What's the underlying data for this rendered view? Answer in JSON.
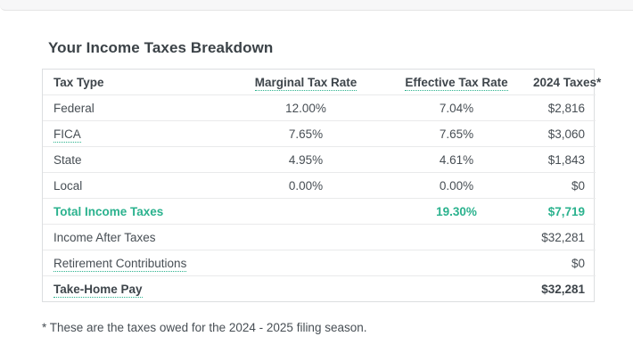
{
  "page": {
    "title": "Your Income Taxes Breakdown",
    "footnote": "* These are the taxes owed for the 2024 - 2025 filing season."
  },
  "colors": {
    "accent_teal": "#2bb28e",
    "text_dark": "#3e454b",
    "text_body": "#474e54",
    "table_border": "#dcdee0",
    "row_divider": "#e9eaeb",
    "top_strip_bg": "#f7f7f8"
  },
  "table": {
    "headers": {
      "tax_type": "Tax Type",
      "marginal": "Marginal Tax Rate",
      "effective": "Effective Tax Rate",
      "taxes_2024": "2024 Taxes*"
    },
    "rows": [
      {
        "type": "Federal",
        "marginal": "12.00%",
        "effective": "7.04%",
        "taxes": "$2,816"
      },
      {
        "type": "FICA",
        "marginal": "7.65%",
        "effective": "7.65%",
        "taxes": "$3,060"
      },
      {
        "type": "State",
        "marginal": "4.95%",
        "effective": "4.61%",
        "taxes": "$1,843"
      },
      {
        "type": "Local",
        "marginal": "0.00%",
        "effective": "0.00%",
        "taxes": "$0"
      },
      {
        "type": "Total Income Taxes",
        "marginal": "",
        "effective": "19.30%",
        "taxes": "$7,719"
      },
      {
        "type": "Income After Taxes",
        "marginal": "",
        "effective": "",
        "taxes": "$32,281"
      },
      {
        "type": "Retirement Contributions",
        "marginal": "",
        "effective": "",
        "taxes": "$0"
      },
      {
        "type": "Take-Home Pay",
        "marginal": "",
        "effective": "",
        "taxes": "$32,281"
      }
    ]
  }
}
